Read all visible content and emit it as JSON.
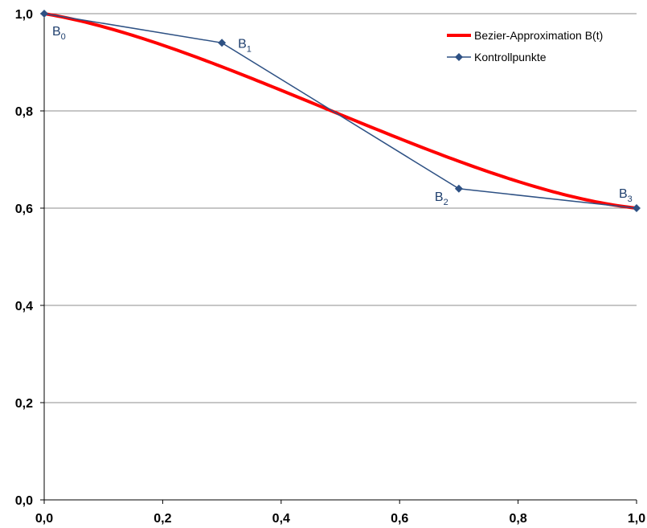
{
  "chart_data": {
    "type": "line",
    "title": "",
    "xlabel": "",
    "ylabel": "",
    "xlim": [
      0,
      1
    ],
    "ylim": [
      0,
      1
    ],
    "x_ticks": [
      "0,0",
      "0,2",
      "0,4",
      "0,6",
      "0,8",
      "1,0"
    ],
    "y_ticks": [
      "0,0",
      "0,2",
      "0,4",
      "0,6",
      "0,8",
      "1,0"
    ],
    "grid": "horizontal",
    "legend_position": "top-right",
    "series": [
      {
        "name": "Bezier-Approximation B(t)",
        "color": "#ff0000",
        "style": "curve",
        "control_points_ref": "Kontrollpunkte"
      },
      {
        "name": "Kontrollpunkte",
        "color": "#2e5184",
        "marker": "diamond",
        "x": [
          0.0,
          0.3,
          0.7,
          1.0
        ],
        "y": [
          1.0,
          0.94,
          0.64,
          0.6
        ]
      }
    ],
    "point_labels": [
      {
        "base": "B",
        "sub": "0"
      },
      {
        "base": "B",
        "sub": "1"
      },
      {
        "base": "B",
        "sub": "2"
      },
      {
        "base": "B",
        "sub": "3"
      }
    ]
  }
}
